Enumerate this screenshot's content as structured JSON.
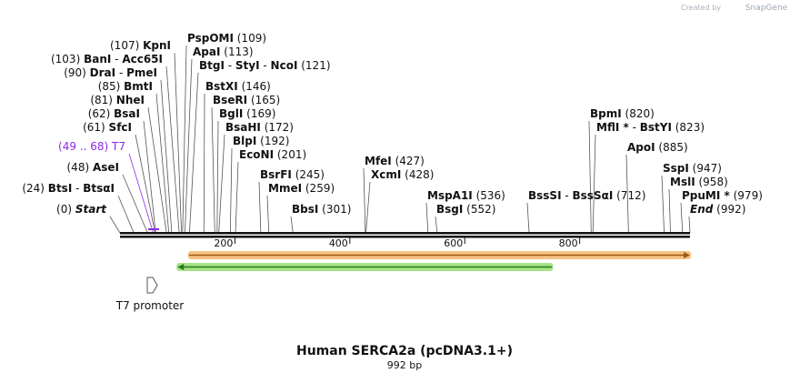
{
  "credit": {
    "text": "Created by",
    "brand": "SnapGene"
  },
  "map": {
    "title": "Human SERCA2a (pcDNA3.1+)",
    "length_label": "992 bp",
    "length": 992,
    "ticks": [
      {
        "pos": 200,
        "label": "200"
      },
      {
        "pos": 400,
        "label": "400"
      },
      {
        "pos": 600,
        "label": "600"
      },
      {
        "pos": 800,
        "label": "800"
      }
    ]
  },
  "sites": [
    {
      "id": "start",
      "pre": "(0) ",
      "name": "Start",
      "post": "",
      "pos": 0,
      "italic": true
    },
    {
      "id": "btsi",
      "pre": "(24) ",
      "name": "BtsI",
      "post": "",
      "name2": "BtsαI",
      "pos": 24
    },
    {
      "id": "asei",
      "pre": "(48) ",
      "name": "AseI",
      "post": "",
      "pos": 48
    },
    {
      "id": "t7",
      "pre": "(49 .. 68) ",
      "name": "T7",
      "post": "",
      "pos": 58,
      "primer": true
    },
    {
      "id": "sfci",
      "pre": "(61) ",
      "name": "SfcI",
      "post": "",
      "pos": 61
    },
    {
      "id": "bsai",
      "pre": "(62) ",
      "name": "BsaI",
      "post": "",
      "pos": 62
    },
    {
      "id": "nhei",
      "pre": "(81) ",
      "name": "NheI",
      "post": "",
      "pos": 81
    },
    {
      "id": "bmti",
      "pre": "(85) ",
      "name": "BmtI",
      "post": "",
      "pos": 85
    },
    {
      "id": "drai",
      "pre": "(90) ",
      "name": "DraI",
      "post": "",
      "name2": "PmeI",
      "pos": 90
    },
    {
      "id": "bani",
      "pre": "(103) ",
      "name": "BanI",
      "post": "",
      "name2": "Acc65I",
      "pos": 103
    },
    {
      "id": "kpni",
      "pre": "(107) ",
      "name": "KpnI",
      "post": "",
      "pos": 107
    },
    {
      "id": "pspomi",
      "pre": "",
      "name": "PspOMI",
      "post": " (109)",
      "pos": 109
    },
    {
      "id": "apai",
      "pre": "",
      "name": "ApaI",
      "post": " (113)",
      "pos": 113
    },
    {
      "id": "btgi",
      "pre": "",
      "name": "BtgI",
      "post": " (121)",
      "name2": "StyI",
      "name3": "NcoI",
      "pos": 121
    },
    {
      "id": "bstxi",
      "pre": "",
      "name": "BstXI",
      "post": " (146)",
      "pos": 146
    },
    {
      "id": "bseri",
      "pre": "",
      "name": "BseRI",
      "post": " (165)",
      "pos": 165
    },
    {
      "id": "bgli",
      "pre": "",
      "name": "BglI",
      "post": " (169)",
      "pos": 169
    },
    {
      "id": "bsahi",
      "pre": "",
      "name": "BsaHI",
      "post": " (172)",
      "pos": 172
    },
    {
      "id": "blpi",
      "pre": "",
      "name": "BlpI",
      "post": " (192)",
      "pos": 192
    },
    {
      "id": "econi",
      "pre": "",
      "name": "EcoNI",
      "post": " (201)",
      "pos": 201
    },
    {
      "id": "bsrfi",
      "pre": "",
      "name": "BsrFI",
      "post": " (245)",
      "pos": 245
    },
    {
      "id": "mmei",
      "pre": "",
      "name": "MmeI",
      "post": " (259)",
      "pos": 259
    },
    {
      "id": "bbsi",
      "pre": "",
      "name": "BbsI",
      "post": " (301)",
      "pos": 301
    },
    {
      "id": "mfei",
      "pre": "",
      "name": "MfeI",
      "post": " (427)",
      "pos": 427
    },
    {
      "id": "xcmi",
      "pre": "",
      "name": "XcmI",
      "post": " (428)",
      "pos": 428
    },
    {
      "id": "mspa1i",
      "pre": "",
      "name": "MspA1I",
      "post": " (536)",
      "pos": 536
    },
    {
      "id": "bsgi",
      "pre": "",
      "name": "BsgI",
      "post": " (552)",
      "pos": 552
    },
    {
      "id": "bsssi",
      "pre": "",
      "name": "BssSI",
      "post": " (712)",
      "name2": "BssSαI",
      "pos": 712
    },
    {
      "id": "bpmi",
      "pre": "",
      "name": "BpmI",
      "post": " (820)",
      "pos": 820
    },
    {
      "id": "mfli",
      "pre": "",
      "name": "MflI *",
      "post": " (823)",
      "name2": "BstYI",
      "pos": 823
    },
    {
      "id": "apoi",
      "pre": "",
      "name": "ApoI",
      "post": " (885)",
      "pos": 885
    },
    {
      "id": "sspi",
      "pre": "",
      "name": "SspI",
      "post": " (947)",
      "pos": 947
    },
    {
      "id": "msli",
      "pre": "",
      "name": "MslI",
      "post": " (958)",
      "pos": 958
    },
    {
      "id": "ppumi",
      "pre": "",
      "name": "PpuMI *",
      "post": " (979)",
      "pos": 979
    },
    {
      "id": "end",
      "pre": "",
      "name": "End",
      "post": " (992)",
      "pos": 992,
      "italic": true
    }
  ],
  "features": [
    {
      "id": "orange-cds",
      "start": 120,
      "end": 992,
      "direction": "forward",
      "color": "#f5b770",
      "edge": "#9a5a12"
    },
    {
      "id": "green-cds",
      "start": 100,
      "end": 752,
      "direction": "reverse",
      "color": "#9be07a",
      "edge": "#2a7a1a"
    },
    {
      "id": "t7-promoter",
      "label": "T7 promoter",
      "pos": 58
    }
  ],
  "colors": {
    "primer": "#8a2be2",
    "backbone": "#111111"
  }
}
